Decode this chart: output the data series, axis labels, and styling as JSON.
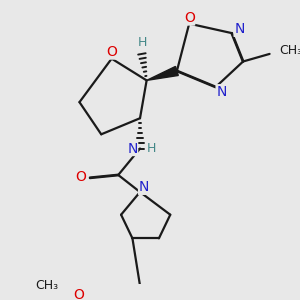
{
  "bg_color": "#e8e8e8",
  "bond_color": "#1a1a1a",
  "bond_width": 1.6,
  "dbo": 0.018,
  "atom_colors": {
    "O": "#dd0000",
    "N": "#2222cc",
    "C": "#1a1a1a",
    "H": "#448888"
  },
  "fs": 10,
  "fs_small": 9,
  "fs_methyl": 9
}
